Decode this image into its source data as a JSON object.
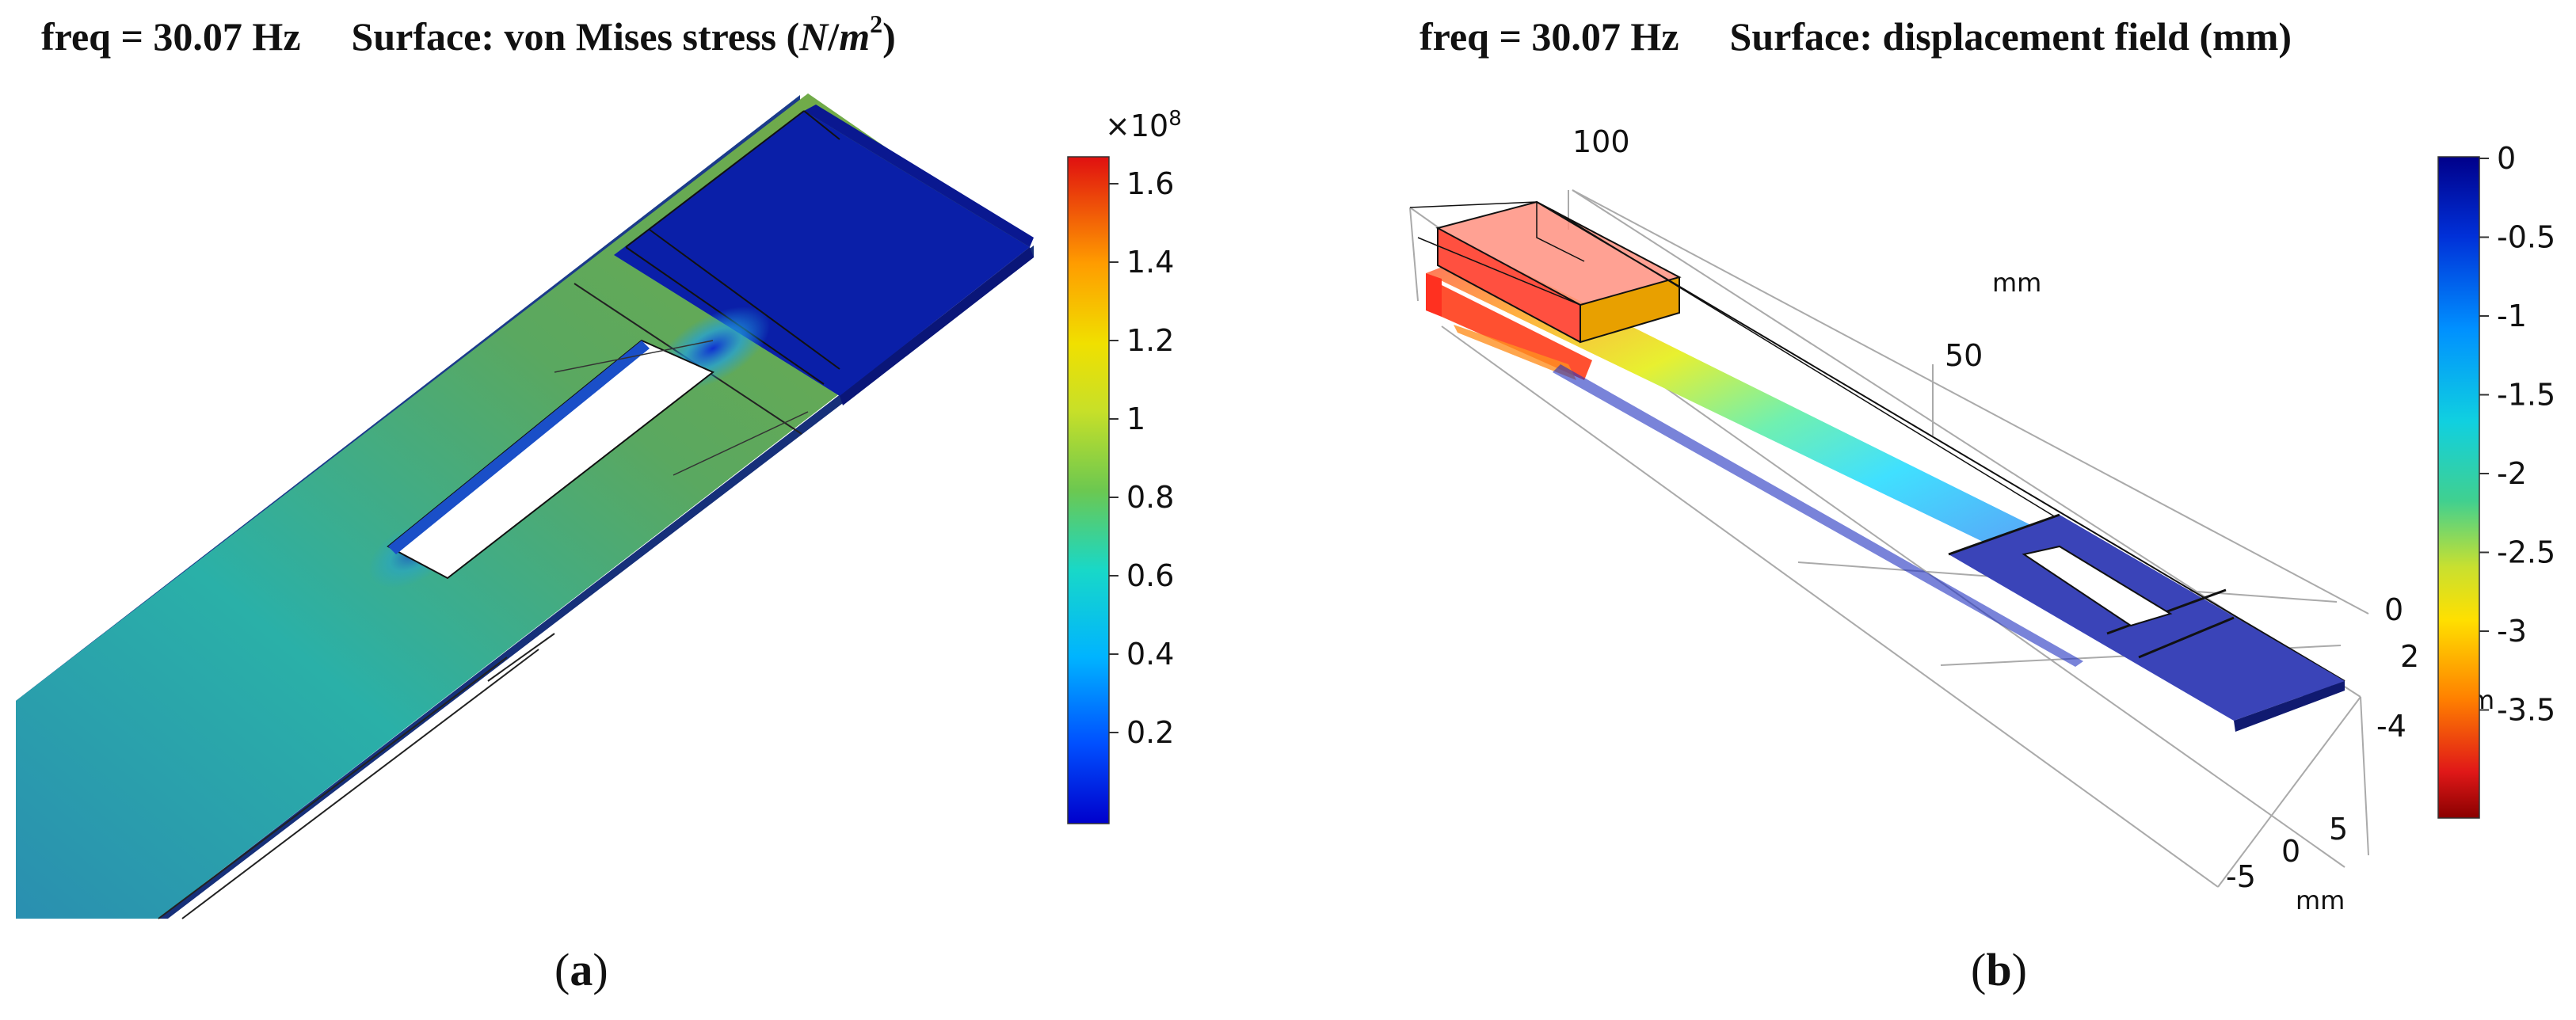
{
  "panel_a": {
    "freq": "freq = 30.07 Hz",
    "surface_prefix": "Surface: von Mises stress (",
    "surface_unit_num": "N",
    "surface_unit_sep": "/",
    "surface_unit_den": "m",
    "surface_unit_exp": "2",
    "surface_suffix": ")",
    "colorbar_multiplier": "×10",
    "colorbar_multiplier_exp": "8",
    "colorbar_ticks": [
      "1.6",
      "1.4",
      "1.2",
      "1",
      "0.8",
      "0.6",
      "0.4",
      "0.2"
    ],
    "caption_open": "(",
    "caption_letter": "a",
    "caption_close": ")"
  },
  "panel_b": {
    "freq": "freq = 30.07 Hz",
    "surface": "Surface: displacement field (mm)",
    "colorbar_ticks": [
      "0",
      "-0.5",
      "-1",
      "-1.5",
      "-2",
      "-2.5",
      "-3",
      "-3.5"
    ],
    "axis_long_ticks": [
      "100",
      "50"
    ],
    "axis_long_unit": "mm",
    "axis_z_ticks": [
      "0",
      "2",
      "-4"
    ],
    "axis_z_unit_partial": "m",
    "axis_y_ticks": [
      "-5",
      "0",
      "5"
    ],
    "axis_y_unit": "mm",
    "caption_open": "(",
    "caption_letter": "b",
    "caption_close": ")"
  },
  "colors": {
    "cmap_low": "#0000aa",
    "cmap_high": "#b00000",
    "beam_stress_mid": "#6fa84a",
    "beam_stress_low": "#2aa8a8",
    "clamp_blue": "#0a1fa8",
    "disp_blue": "#5a63c8"
  }
}
